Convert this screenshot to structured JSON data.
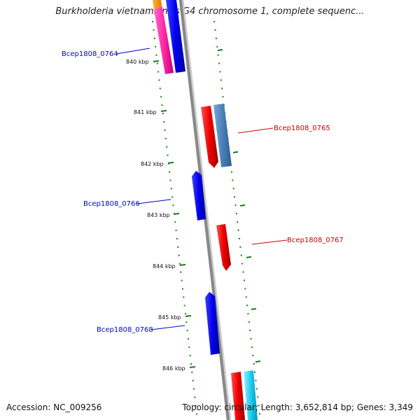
{
  "title": "Burkholderia vietnamiensis G4 chromosome 1, complete sequenc...",
  "footer": {
    "accession": "Accession: NC_009256",
    "summary": "Topology: circular; Length: 3,652,814 bp; Genes: 3,349"
  },
  "colors": {
    "forward_label": "#0000cc",
    "reverse_label": "#cc0000",
    "ticks": "#1a7a1a",
    "backbone": "#888888"
  },
  "ticks": [
    "840 kbp",
    "841 kbp",
    "842 kbp",
    "843 kbp",
    "844 kbp",
    "845 kbp",
    "846 kbp"
  ],
  "genes": [
    {
      "label": "Bcep1808_0764",
      "strand": "forward"
    },
    {
      "label": "Bcep1808_0765",
      "strand": "reverse"
    },
    {
      "label": "Bcep1808_0766",
      "strand": "forward"
    },
    {
      "label": "Bcep1808_0767",
      "strand": "reverse"
    },
    {
      "label": "Bcep1808_0768",
      "strand": "forward"
    }
  ]
}
